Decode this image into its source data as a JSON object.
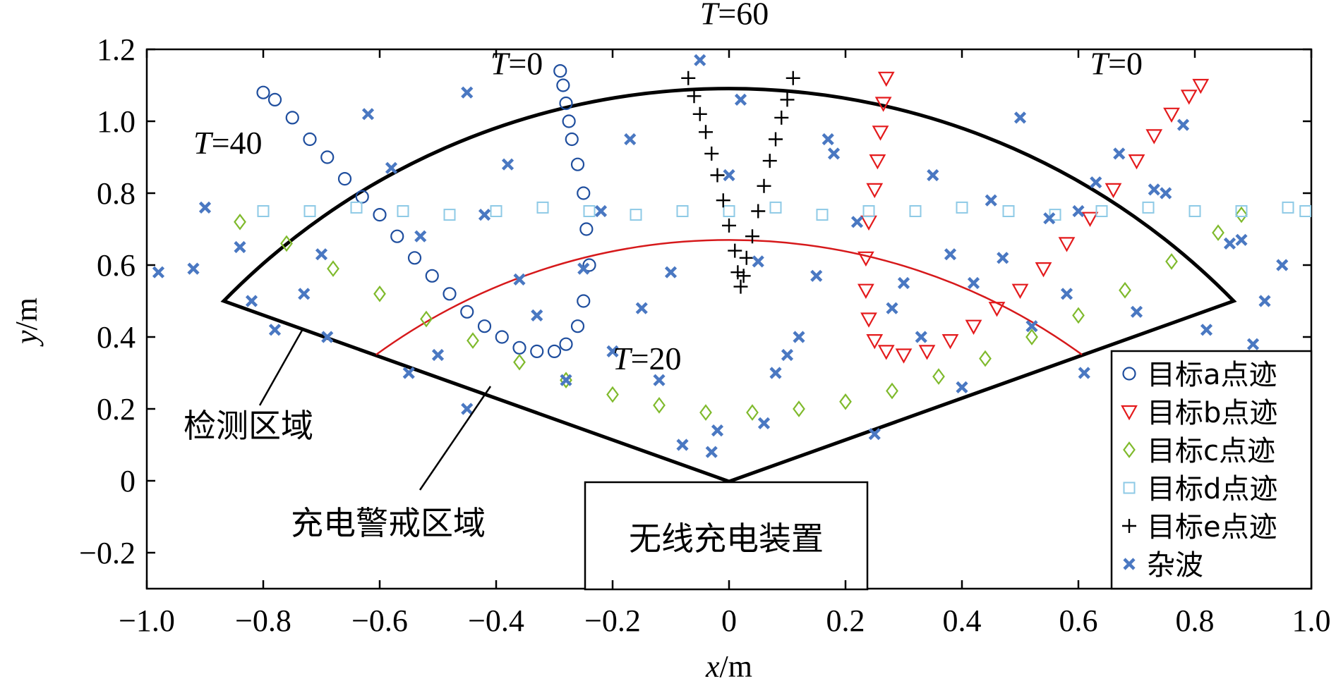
{
  "chart_data": {
    "type": "scatter",
    "xlabel": {
      "var": "x",
      "unit": "/m"
    },
    "ylabel": {
      "var": "y",
      "unit": "/m"
    },
    "xlim": [
      -1.0,
      1.0
    ],
    "ylim": [
      -0.3,
      1.2
    ],
    "x_ticks": [
      -1.0,
      -0.8,
      -0.6,
      -0.4,
      -0.2,
      0,
      0.2,
      0.4,
      0.6,
      0.8,
      1.0
    ],
    "x_tick_labels": [
      "−1.0",
      "−0.8",
      "−0.6",
      "−0.4",
      "−0.2",
      "0",
      "0.2",
      "0.4",
      "0.6",
      "0.8",
      "1.0"
    ],
    "y_ticks": [
      -0.2,
      0,
      0.2,
      0.4,
      0.6,
      0.8,
      1.0,
      1.2
    ],
    "y_tick_labels": [
      "−0.2",
      "0",
      "0.2",
      "0.4",
      "0.6",
      "0.8",
      "1.0",
      "1.2"
    ],
    "grid": false,
    "legend_position": "bottom-right",
    "series": [
      {
        "name": "目标a点迹",
        "marker": "circle",
        "color": "#1f4e9e",
        "x": [
          -0.8,
          -0.78,
          -0.75,
          -0.72,
          -0.69,
          -0.66,
          -0.63,
          -0.6,
          -0.57,
          -0.54,
          -0.51,
          -0.48,
          -0.45,
          -0.42,
          -0.39,
          -0.36,
          -0.33,
          -0.3,
          -0.28,
          -0.26,
          -0.25,
          -0.24,
          -0.245,
          -0.25,
          -0.26,
          -0.27,
          -0.275,
          -0.28,
          -0.285,
          -0.29
        ],
        "y": [
          1.08,
          1.06,
          1.01,
          0.95,
          0.9,
          0.84,
          0.79,
          0.74,
          0.68,
          0.62,
          0.57,
          0.52,
          0.47,
          0.43,
          0.4,
          0.37,
          0.36,
          0.36,
          0.38,
          0.43,
          0.5,
          0.6,
          0.7,
          0.8,
          0.88,
          0.95,
          1.0,
          1.05,
          1.1,
          1.14
        ]
      },
      {
        "name": "目标b点迹",
        "marker": "triangle-down",
        "color": "#e41a1c",
        "x": [
          0.27,
          0.265,
          0.26,
          0.255,
          0.25,
          0.24,
          0.235,
          0.235,
          0.24,
          0.25,
          0.27,
          0.3,
          0.34,
          0.38,
          0.42,
          0.46,
          0.5,
          0.54,
          0.58,
          0.62,
          0.66,
          0.7,
          0.73,
          0.76,
          0.79,
          0.81
        ],
        "y": [
          1.12,
          1.05,
          0.97,
          0.89,
          0.81,
          0.72,
          0.62,
          0.53,
          0.45,
          0.39,
          0.36,
          0.35,
          0.36,
          0.39,
          0.43,
          0.48,
          0.53,
          0.59,
          0.66,
          0.73,
          0.81,
          0.89,
          0.96,
          1.02,
          1.07,
          1.1
        ]
      },
      {
        "name": "目标c点迹",
        "marker": "diamond",
        "color": "#7fba2c",
        "x": [
          -0.84,
          -0.76,
          -0.68,
          -0.6,
          -0.52,
          -0.44,
          -0.36,
          -0.28,
          -0.2,
          -0.12,
          -0.04,
          0.04,
          0.12,
          0.2,
          0.28,
          0.36,
          0.44,
          0.52,
          0.6,
          0.68,
          0.76,
          0.84,
          0.88
        ],
        "y": [
          0.72,
          0.66,
          0.59,
          0.52,
          0.45,
          0.39,
          0.33,
          0.28,
          0.24,
          0.21,
          0.19,
          0.19,
          0.2,
          0.22,
          0.25,
          0.29,
          0.34,
          0.4,
          0.46,
          0.53,
          0.61,
          0.69,
          0.74
        ]
      },
      {
        "name": "目标d点迹",
        "marker": "square",
        "color": "#8ecae6",
        "x": [
          -0.8,
          -0.72,
          -0.64,
          -0.56,
          -0.48,
          -0.4,
          -0.32,
          -0.24,
          -0.16,
          -0.08,
          0.0,
          0.08,
          0.16,
          0.24,
          0.32,
          0.4,
          0.48,
          0.56,
          0.64,
          0.72,
          0.8,
          0.88,
          0.96,
          0.99
        ],
        "y": [
          0.75,
          0.75,
          0.76,
          0.75,
          0.74,
          0.75,
          0.76,
          0.75,
          0.74,
          0.75,
          0.75,
          0.76,
          0.74,
          0.75,
          0.75,
          0.76,
          0.75,
          0.74,
          0.75,
          0.76,
          0.75,
          0.75,
          0.76,
          0.75
        ]
      },
      {
        "name": "目标e点迹",
        "marker": "plus",
        "color": "#000000",
        "x": [
          -0.07,
          -0.06,
          -0.05,
          -0.04,
          -0.03,
          -0.02,
          -0.01,
          0.0,
          0.01,
          0.015,
          0.02,
          0.025,
          0.03,
          0.04,
          0.05,
          0.06,
          0.07,
          0.08,
          0.09,
          0.1,
          0.11
        ],
        "y": [
          1.12,
          1.07,
          1.02,
          0.97,
          0.91,
          0.85,
          0.78,
          0.71,
          0.64,
          0.58,
          0.54,
          0.57,
          0.62,
          0.68,
          0.75,
          0.82,
          0.89,
          0.95,
          1.01,
          1.06,
          1.12
        ]
      },
      {
        "name": "杂波",
        "marker": "x",
        "color": "#4a78c2",
        "x": [
          -0.98,
          -0.92,
          -0.9,
          -0.84,
          -0.82,
          -0.78,
          -0.73,
          -0.69,
          -0.62,
          -0.58,
          -0.53,
          -0.5,
          -0.45,
          -0.42,
          -0.36,
          -0.33,
          -0.28,
          -0.25,
          -0.22,
          -0.17,
          -0.15,
          -0.12,
          -0.08,
          -0.05,
          -0.03,
          0.0,
          0.02,
          0.05,
          0.08,
          0.12,
          0.15,
          0.17,
          0.22,
          0.25,
          0.3,
          0.33,
          0.35,
          0.38,
          0.42,
          0.45,
          0.47,
          0.5,
          0.55,
          0.58,
          0.61,
          0.63,
          0.67,
          0.7,
          0.73,
          0.78,
          0.82,
          0.86,
          0.88,
          0.92,
          0.95,
          0.97,
          -0.7,
          -0.55,
          -0.38,
          -0.1,
          -0.02,
          0.1,
          0.18,
          0.28,
          0.4,
          0.52,
          0.6,
          0.75,
          0.9,
          -0.45,
          -0.2,
          0.06
        ],
        "y": [
          0.58,
          0.59,
          0.76,
          0.65,
          0.5,
          0.42,
          0.52,
          0.4,
          1.02,
          0.87,
          0.68,
          0.35,
          1.08,
          0.74,
          0.56,
          0.46,
          0.28,
          0.59,
          0.75,
          0.95,
          0.48,
          0.28,
          0.1,
          1.17,
          0.08,
          0.85,
          1.06,
          0.61,
          0.3,
          0.4,
          0.57,
          0.95,
          0.72,
          0.13,
          0.55,
          0.4,
          0.85,
          0.63,
          0.55,
          0.78,
          0.62,
          1.01,
          0.73,
          0.52,
          0.3,
          0.83,
          0.91,
          0.47,
          0.81,
          0.99,
          0.42,
          0.66,
          0.67,
          0.5,
          0.6,
          0.28,
          0.63,
          0.3,
          0.88,
          0.58,
          0.14,
          0.35,
          0.91,
          0.48,
          0.26,
          0.43,
          0.75,
          0.8,
          0.38,
          0.2,
          0.36,
          0.16
        ]
      }
    ],
    "annotations": [
      {
        "text_var": "T",
        "text_val": "=60",
        "x": -0.05,
        "y": 1.27
      },
      {
        "text_var": "T",
        "text_val": "=0",
        "x": -0.41,
        "y": 1.13
      },
      {
        "text_var": "T",
        "text_val": "=40",
        "x": -0.92,
        "y": 0.91
      },
      {
        "text_var": "T",
        "text_val": "=0",
        "x": 0.62,
        "y": 1.13
      },
      {
        "text_var": "T",
        "text_val": "=20",
        "x": -0.2,
        "y": 0.31
      }
    ],
    "labels": {
      "detect_zone": "检测区域",
      "charge_zone": "充电警戒区域",
      "device": "无线充电装置"
    }
  }
}
